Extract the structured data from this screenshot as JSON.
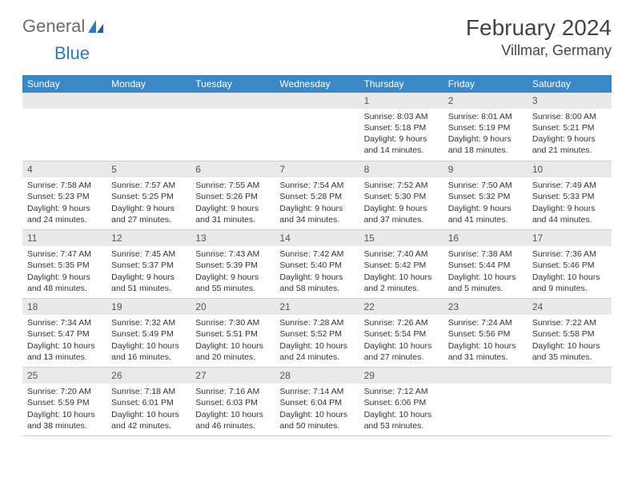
{
  "logo": {
    "gray": "General",
    "blue": "Blue"
  },
  "title": "February 2024",
  "location": "Villmar, Germany",
  "colors": {
    "header_bg": "#3b88c7",
    "header_text": "#ffffff",
    "daynum_bg": "#e9e9e9",
    "logo_gray": "#6b6b6b",
    "logo_blue": "#2b7bbf",
    "border": "#c9d3df"
  },
  "weekdays": [
    "Sunday",
    "Monday",
    "Tuesday",
    "Wednesday",
    "Thursday",
    "Friday",
    "Saturday"
  ],
  "weeks": [
    [
      null,
      null,
      null,
      null,
      {
        "n": "1",
        "sr": "8:03 AM",
        "ss": "5:18 PM",
        "dl": "9 hours and 14 minutes."
      },
      {
        "n": "2",
        "sr": "8:01 AM",
        "ss": "5:19 PM",
        "dl": "9 hours and 18 minutes."
      },
      {
        "n": "3",
        "sr": "8:00 AM",
        "ss": "5:21 PM",
        "dl": "9 hours and 21 minutes."
      }
    ],
    [
      {
        "n": "4",
        "sr": "7:58 AM",
        "ss": "5:23 PM",
        "dl": "9 hours and 24 minutes."
      },
      {
        "n": "5",
        "sr": "7:57 AM",
        "ss": "5:25 PM",
        "dl": "9 hours and 27 minutes."
      },
      {
        "n": "6",
        "sr": "7:55 AM",
        "ss": "5:26 PM",
        "dl": "9 hours and 31 minutes."
      },
      {
        "n": "7",
        "sr": "7:54 AM",
        "ss": "5:28 PM",
        "dl": "9 hours and 34 minutes."
      },
      {
        "n": "8",
        "sr": "7:52 AM",
        "ss": "5:30 PM",
        "dl": "9 hours and 37 minutes."
      },
      {
        "n": "9",
        "sr": "7:50 AM",
        "ss": "5:32 PM",
        "dl": "9 hours and 41 minutes."
      },
      {
        "n": "10",
        "sr": "7:49 AM",
        "ss": "5:33 PM",
        "dl": "9 hours and 44 minutes."
      }
    ],
    [
      {
        "n": "11",
        "sr": "7:47 AM",
        "ss": "5:35 PM",
        "dl": "9 hours and 48 minutes."
      },
      {
        "n": "12",
        "sr": "7:45 AM",
        "ss": "5:37 PM",
        "dl": "9 hours and 51 minutes."
      },
      {
        "n": "13",
        "sr": "7:43 AM",
        "ss": "5:39 PM",
        "dl": "9 hours and 55 minutes."
      },
      {
        "n": "14",
        "sr": "7:42 AM",
        "ss": "5:40 PM",
        "dl": "9 hours and 58 minutes."
      },
      {
        "n": "15",
        "sr": "7:40 AM",
        "ss": "5:42 PM",
        "dl": "10 hours and 2 minutes."
      },
      {
        "n": "16",
        "sr": "7:38 AM",
        "ss": "5:44 PM",
        "dl": "10 hours and 5 minutes."
      },
      {
        "n": "17",
        "sr": "7:36 AM",
        "ss": "5:46 PM",
        "dl": "10 hours and 9 minutes."
      }
    ],
    [
      {
        "n": "18",
        "sr": "7:34 AM",
        "ss": "5:47 PM",
        "dl": "10 hours and 13 minutes."
      },
      {
        "n": "19",
        "sr": "7:32 AM",
        "ss": "5:49 PM",
        "dl": "10 hours and 16 minutes."
      },
      {
        "n": "20",
        "sr": "7:30 AM",
        "ss": "5:51 PM",
        "dl": "10 hours and 20 minutes."
      },
      {
        "n": "21",
        "sr": "7:28 AM",
        "ss": "5:52 PM",
        "dl": "10 hours and 24 minutes."
      },
      {
        "n": "22",
        "sr": "7:26 AM",
        "ss": "5:54 PM",
        "dl": "10 hours and 27 minutes."
      },
      {
        "n": "23",
        "sr": "7:24 AM",
        "ss": "5:56 PM",
        "dl": "10 hours and 31 minutes."
      },
      {
        "n": "24",
        "sr": "7:22 AM",
        "ss": "5:58 PM",
        "dl": "10 hours and 35 minutes."
      }
    ],
    [
      {
        "n": "25",
        "sr": "7:20 AM",
        "ss": "5:59 PM",
        "dl": "10 hours and 38 minutes."
      },
      {
        "n": "26",
        "sr": "7:18 AM",
        "ss": "6:01 PM",
        "dl": "10 hours and 42 minutes."
      },
      {
        "n": "27",
        "sr": "7:16 AM",
        "ss": "6:03 PM",
        "dl": "10 hours and 46 minutes."
      },
      {
        "n": "28",
        "sr": "7:14 AM",
        "ss": "6:04 PM",
        "dl": "10 hours and 50 minutes."
      },
      {
        "n": "29",
        "sr": "7:12 AM",
        "ss": "6:06 PM",
        "dl": "10 hours and 53 minutes."
      },
      null,
      null
    ]
  ],
  "labels": {
    "sunrise": "Sunrise:",
    "sunset": "Sunset:",
    "daylight": "Daylight:"
  }
}
